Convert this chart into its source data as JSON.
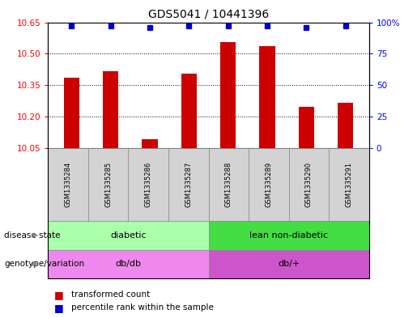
{
  "title": "GDS5041 / 10441396",
  "samples": [
    "GSM1335284",
    "GSM1335285",
    "GSM1335286",
    "GSM1335287",
    "GSM1335288",
    "GSM1335289",
    "GSM1335290",
    "GSM1335291"
  ],
  "transformed_counts": [
    10.385,
    10.415,
    10.09,
    10.405,
    10.555,
    10.535,
    10.245,
    10.265
  ],
  "percentile_ranks": [
    97,
    97,
    96,
    97,
    97,
    97,
    96,
    97
  ],
  "ylim_left": [
    10.05,
    10.65
  ],
  "ylim_right": [
    0,
    100
  ],
  "yticks_left": [
    10.05,
    10.2,
    10.35,
    10.5,
    10.65
  ],
  "yticks_right": [
    0,
    25,
    50,
    75,
    100
  ],
  "bar_color": "#cc0000",
  "dot_color": "#0000cc",
  "disease_state_groups": [
    {
      "label": "diabetic",
      "start": 0,
      "end": 4,
      "color": "#aaffaa"
    },
    {
      "label": "lean non-diabetic",
      "start": 4,
      "end": 8,
      "color": "#44dd44"
    }
  ],
  "genotype_groups": [
    {
      "label": "db/db",
      "start": 0,
      "end": 4,
      "color": "#ee88ee"
    },
    {
      "label": "db/+",
      "start": 4,
      "end": 8,
      "color": "#cc55cc"
    }
  ],
  "legend_labels": [
    "transformed count",
    "percentile rank within the sample"
  ],
  "legend_colors": [
    "#cc0000",
    "#0000cc"
  ],
  "row_labels": [
    "disease state",
    "genotype/variation"
  ],
  "grid_yticks": [
    10.2,
    10.35,
    10.5
  ],
  "bar_width": 0.4
}
